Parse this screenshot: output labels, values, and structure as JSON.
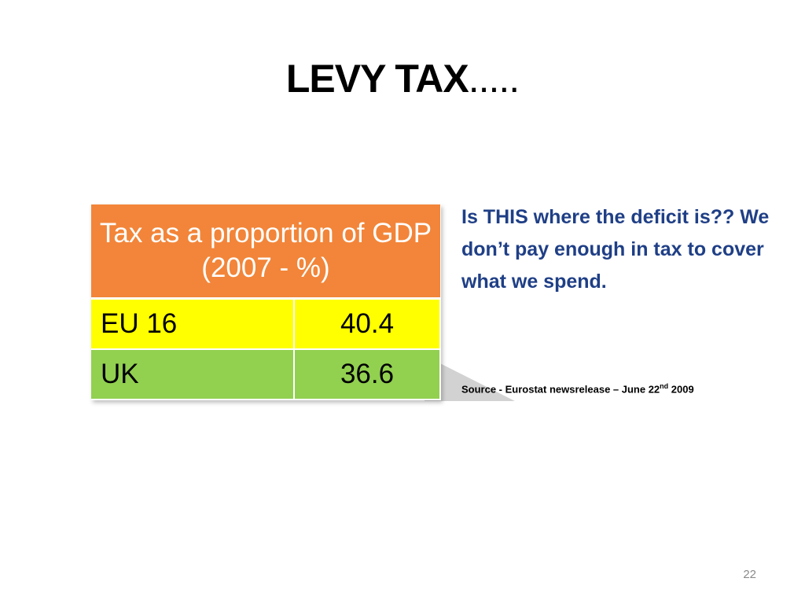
{
  "slide": {
    "title": "LEVY TAX",
    "title_dots": ".....",
    "page_number": "22"
  },
  "table": {
    "header": "Tax as a proportion of GDP (2007 - %)",
    "rows": [
      {
        "label": "EU  16",
        "value": "40.4",
        "color": "#ffff00"
      },
      {
        "label": "UK",
        "value": "36.6",
        "color": "#92d050"
      }
    ],
    "header_color": "#f28539"
  },
  "note": {
    "text": "Is THIS where the deficit is??  We don’t pay enough in tax to cover what we spend.",
    "color": "#1f3f86"
  },
  "source": {
    "prefix": "Source - Eurostat newsrelease – June 22",
    "superscript": "nd",
    "suffix": " 2009"
  }
}
